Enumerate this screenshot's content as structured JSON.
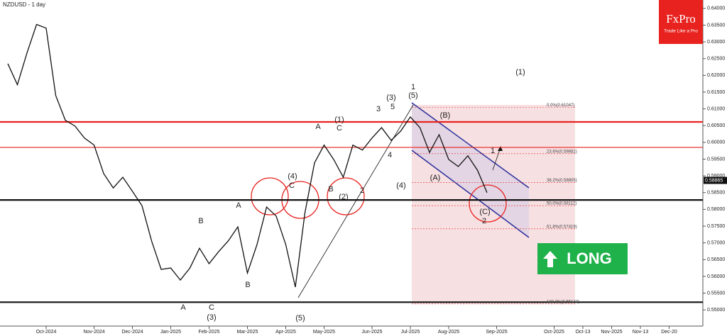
{
  "chart_data": {
    "type": "line",
    "title": "NZDUSD - 1 day",
    "color": "#111111",
    "categories": [
      null,
      null,
      null,
      null,
      "Oct-2024",
      null,
      null,
      null,
      null,
      "Nov-2024",
      null,
      null,
      null,
      "Dec-2024",
      null,
      null,
      null,
      "Jan-2025",
      null,
      null,
      null,
      "Feb-2025",
      null,
      null,
      null,
      "Mar-2025",
      null,
      null,
      null,
      "Apr-2025",
      null,
      null,
      null,
      "May-2025",
      null,
      null,
      null,
      null,
      "Jun-2025",
      null,
      null,
      null,
      "Jul-2025",
      null,
      null,
      null,
      "Aug-2025",
      null,
      null,
      null,
      null,
      "Sep-2025",
      null,
      null,
      null,
      null,
      null,
      "Oct-2025",
      null,
      null,
      "Oct-13",
      null,
      null,
      "Nov-2025",
      null,
      null,
      "Nov-13",
      null,
      null,
      "Dec-20",
      null,
      null,
      null
    ],
    "values": [
      0.6235,
      0.6172,
      0.6267,
      0.6352,
      0.6341,
      0.614,
      0.6066,
      0.6049,
      0.6013,
      0.5992,
      0.5907,
      0.5864,
      0.5896,
      0.5854,
      0.5811,
      0.5706,
      0.5621,
      0.5625,
      0.5589,
      0.5625,
      0.5684,
      0.5638,
      0.5674,
      0.5706,
      0.5748,
      0.561,
      0.5695,
      0.5807,
      0.578,
      0.5695,
      0.5568,
      0.579,
      0.5939,
      0.5992,
      0.5949,
      0.5896,
      0.5992,
      0.5977,
      0.6013,
      0.6044,
      0.6006,
      0.6034,
      0.6076,
      0.6044,
      0.597,
      0.6023,
      0.5949,
      0.5928,
      0.596,
      0.5917,
      0.585,
      null,
      null,
      null,
      null,
      null,
      null,
      null,
      null,
      null,
      null,
      null,
      null,
      null,
      null,
      null,
      null,
      null,
      null,
      null,
      null,
      null,
      null
    ],
    "ylim": [
      0.5439,
      0.6425
    ],
    "yticks": [
      {
        "value": 0.55,
        "label": "0.55000"
      },
      {
        "value": 0.555,
        "label": "0.55500"
      },
      {
        "value": 0.56,
        "label": "0.56000"
      },
      {
        "value": 0.565,
        "label": "0.56500"
      },
      {
        "value": 0.57,
        "label": "0.57000"
      },
      {
        "value": 0.575,
        "label": "0.57500"
      },
      {
        "value": 0.58,
        "label": "0.58000"
      },
      {
        "value": 0.585,
        "label": "0.58500"
      },
      {
        "value": 0.59,
        "label": "0.59000"
      },
      {
        "value": 0.595,
        "label": "0.59500"
      },
      {
        "value": 0.6,
        "label": "0.60000"
      },
      {
        "value": 0.605,
        "label": "0.60500"
      },
      {
        "value": 0.61,
        "label": "0.61000"
      },
      {
        "value": 0.615,
        "label": "0.61500"
      },
      {
        "value": 0.62,
        "label": "0.62000"
      },
      {
        "value": 0.625,
        "label": "0.62500"
      },
      {
        "value": 0.63,
        "label": "0.63000"
      },
      {
        "value": 0.635,
        "label": "0.63500"
      },
      {
        "value": 0.64,
        "label": "0.64000"
      }
    ],
    "last_price": {
      "value": 0.58865,
      "label": "0.58865"
    },
    "levels": [
      {
        "value": 0.6061,
        "color": "#e8231f",
        "style": "thick"
      },
      {
        "value": 0.5985,
        "color": "#e8231f",
        "style": "thin"
      },
      {
        "value": 0.5828,
        "color": "#111111",
        "style": "thick"
      },
      {
        "value": 0.5523,
        "color": "#111111",
        "style": "thick"
      }
    ],
    "fib_levels": [
      {
        "value": 0.61047,
        "label": "0.0%(0.61047)"
      },
      {
        "value": 0.59662,
        "label": "23.6%(0.59662)"
      },
      {
        "value": 0.58805,
        "label": "38.2%(0.58805)"
      },
      {
        "value": 0.58112,
        "label": "50.0%(0.58112)"
      },
      {
        "value": 0.57419,
        "label": "61.8%(0.57419)"
      },
      {
        "value": 0.55177,
        "label": "100.0%(0.55177)"
      }
    ],
    "annotations": [
      "(1)",
      "1",
      "(5)",
      "(3)",
      "3",
      "5",
      "(1)",
      "A",
      "C",
      "B",
      "4",
      "(4)",
      "(2)",
      "2",
      "(4)",
      "C",
      "(B)",
      "(A)",
      "(C)",
      "2",
      "1",
      "A",
      "B",
      "A",
      "C",
      "(3)",
      "B",
      "(5)"
    ],
    "logo": {
      "brand": "FxPro",
      "tagline": "Trade Like a Pro"
    },
    "signal": "LONG"
  }
}
